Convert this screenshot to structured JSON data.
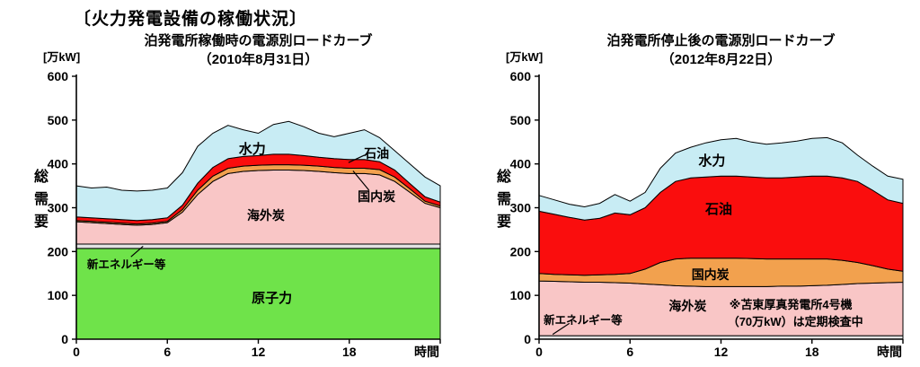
{
  "page_title": "〔火力発電設備の稼働状況〕",
  "chart_data": [
    {
      "type": "area",
      "stacked": true,
      "title_lines": [
        "泊発電所稼働時の電源別ロードカーブ",
        "（2010年8月31日）"
      ],
      "unit_label": "[万kW]",
      "y_axis_label": "総需要",
      "x_axis_label": "時間",
      "xlim": [
        0,
        24
      ],
      "ylim": [
        0,
        600
      ],
      "yticks": [
        0,
        100,
        200,
        300,
        400,
        500,
        600
      ],
      "xticks": [
        0,
        6,
        12,
        18
      ],
      "xticks_unlabeled": [
        24
      ],
      "x": [
        0,
        1,
        2,
        3,
        4,
        5,
        6,
        7,
        8,
        9,
        10,
        11,
        12,
        13,
        14,
        15,
        16,
        17,
        18,
        19,
        20,
        21,
        22,
        23,
        24
      ],
      "series": [
        {
          "name": "原子力",
          "color": "#6fe34a",
          "values": [
            207,
            207,
            207,
            207,
            207,
            207,
            207,
            207,
            207,
            207,
            207,
            207,
            207,
            207,
            207,
            207,
            207,
            207,
            207,
            207,
            207,
            207,
            207,
            207,
            207
          ]
        },
        {
          "name": "新エネルギー等",
          "color": "#e2e2e2",
          "values": [
            10,
            10,
            10,
            10,
            10,
            10,
            10,
            10,
            10,
            10,
            10,
            10,
            10,
            10,
            10,
            10,
            10,
            10,
            10,
            10,
            10,
            10,
            10,
            10,
            10
          ]
        },
        {
          "name": "海外炭",
          "color": "#f9c6c6",
          "values": [
            51,
            49,
            47,
            45,
            43,
            45,
            49,
            73,
            113,
            143,
            161,
            166,
            168,
            169,
            169,
            168,
            166,
            163,
            161,
            161,
            158,
            143,
            118,
            93,
            83
          ]
        },
        {
          "name": "国内炭",
          "color": "#f2a14e",
          "values": [
            3,
            3,
            3,
            3,
            3,
            3,
            3,
            6,
            10,
            12,
            12,
            12,
            12,
            12,
            12,
            12,
            12,
            12,
            12,
            12,
            12,
            10,
            8,
            5,
            4
          ]
        },
        {
          "name": "石油",
          "color": "#fa0d0d",
          "values": [
            8,
            8,
            8,
            8,
            8,
            8,
            8,
            10,
            16,
            20,
            22,
            22,
            22,
            24,
            24,
            22,
            20,
            20,
            20,
            20,
            18,
            16,
            12,
            10,
            9
          ]
        },
        {
          "name": "水力",
          "color": "#c8ecf4",
          "values": [
            71,
            68,
            72,
            67,
            67,
            67,
            68,
            74,
            84,
            78,
            76,
            61,
            51,
            68,
            75,
            66,
            55,
            50,
            60,
            68,
            55,
            44,
            45,
            45,
            37
          ]
        }
      ],
      "annotations": [
        {
          "text": "水力",
          "x": 11.6,
          "y": 434,
          "size": 15
        },
        {
          "text": "石油",
          "x": 19.8,
          "y": 424,
          "size": 14,
          "leader": [
            19.0,
            420,
            17.95,
            403
          ]
        },
        {
          "text": "国内炭",
          "x": 19.8,
          "y": 326,
          "size": 14,
          "leader": [
            19.3,
            340,
            18.25,
            384
          ]
        },
        {
          "text": "海外炭",
          "x": 12.5,
          "y": 283,
          "size": 14
        },
        {
          "text": "新エネルギー等",
          "x": 3.3,
          "y": 172,
          "size": 12.5,
          "leader": [
            3.6,
            188,
            4.4,
            212
          ]
        },
        {
          "text": "原子力",
          "x": 12.9,
          "y": 94,
          "size": 15
        }
      ]
    },
    {
      "type": "area",
      "stacked": true,
      "title_lines": [
        "泊発電所停止後の電源別ロードカーブ",
        "（2012年8月22日）"
      ],
      "unit_label": "[万kW]",
      "y_axis_label": "総需要",
      "x_axis_label": "時間",
      "xlim": [
        0,
        24
      ],
      "ylim": [
        0,
        600
      ],
      "yticks": [
        0,
        100,
        200,
        300,
        400,
        500,
        600
      ],
      "xticks": [
        0,
        6,
        12,
        18
      ],
      "xticks_unlabeled": [
        24
      ],
      "x": [
        0,
        1,
        2,
        3,
        4,
        5,
        6,
        7,
        8,
        9,
        10,
        11,
        12,
        13,
        14,
        15,
        16,
        17,
        18,
        19,
        20,
        21,
        22,
        23,
        24
      ],
      "series": [
        {
          "name": "新エネルギー等",
          "color": "#e2e2e2",
          "values": [
            8,
            8,
            8,
            8,
            8,
            8,
            8,
            8,
            8,
            8,
            8,
            8,
            8,
            8,
            8,
            8,
            8,
            8,
            8,
            8,
            8,
            8,
            8,
            8,
            8
          ]
        },
        {
          "name": "海外炭",
          "color": "#f9c6c6",
          "values": [
            125,
            124,
            123,
            122,
            122,
            121,
            120,
            118,
            116,
            114,
            113,
            112,
            112,
            112,
            112,
            112,
            113,
            113,
            114,
            115,
            117,
            119,
            120,
            121,
            122
          ]
        },
        {
          "name": "国内炭",
          "color": "#f2a14e",
          "values": [
            17,
            16,
            16,
            16,
            17,
            19,
            22,
            34,
            51,
            61,
            64,
            65,
            65,
            65,
            64,
            63,
            62,
            62,
            61,
            60,
            55,
            48,
            40,
            31,
            25
          ]
        },
        {
          "name": "石油",
          "color": "#fa0d0d",
          "values": [
            142,
            137,
            131,
            126,
            129,
            140,
            134,
            140,
            160,
            177,
            183,
            185,
            187,
            187,
            186,
            185,
            185,
            187,
            189,
            189,
            188,
            185,
            172,
            158,
            155
          ]
        },
        {
          "name": "水力",
          "color": "#c8ecf4",
          "values": [
            36,
            33,
            30,
            30,
            34,
            42,
            31,
            35,
            55,
            65,
            70,
            78,
            83,
            86,
            80,
            77,
            80,
            82,
            86,
            88,
            80,
            60,
            55,
            54,
            55
          ]
        }
      ],
      "annotations": [
        {
          "text": "水力",
          "x": 11.4,
          "y": 407,
          "size": 15
        },
        {
          "text": "石油",
          "x": 11.85,
          "y": 297,
          "size": 15
        },
        {
          "text": "国内炭",
          "x": 11.3,
          "y": 147,
          "size": 14
        },
        {
          "text": "海外炭",
          "x": 9.8,
          "y": 76,
          "size": 14
        },
        {
          "text": "新エネルギー等",
          "x": 2.9,
          "y": 45,
          "size": 12.5,
          "leader": [
            2.0,
            36,
            0.9,
            11
          ]
        },
        {
          "text": "※苫東厚真発電所4号機",
          "x": 16.6,
          "y": 80,
          "size": 13
        },
        {
          "text": "（70万kW）は定期検査中",
          "x": 16.9,
          "y": 41,
          "size": 13
        }
      ]
    }
  ]
}
